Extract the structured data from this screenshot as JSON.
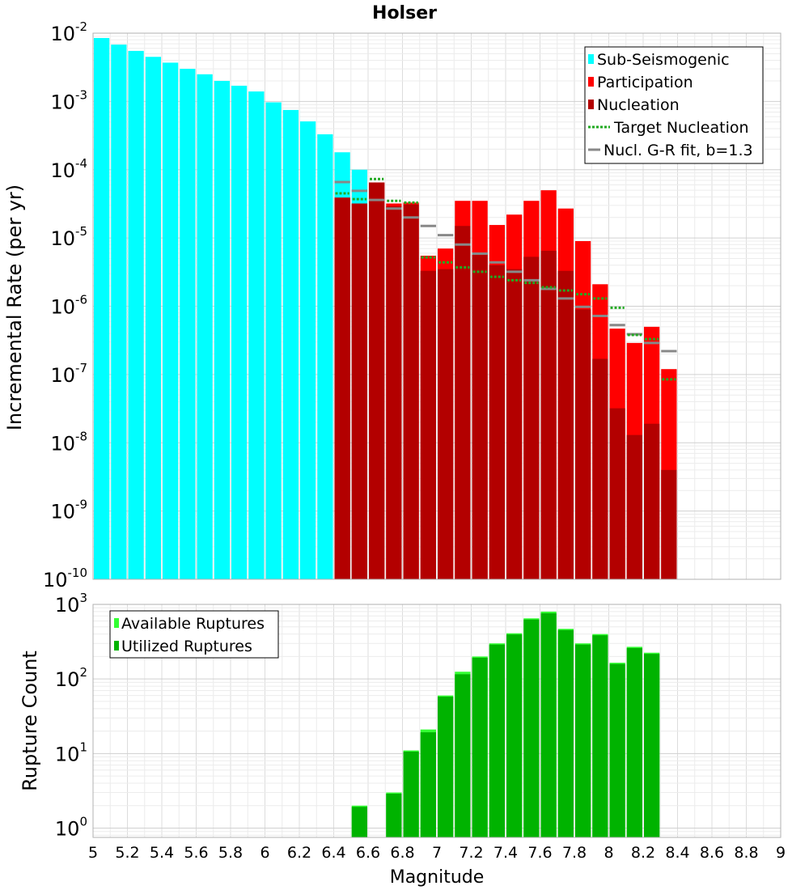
{
  "chart_data": [
    {
      "type": "bar",
      "title": "Holser",
      "xlabel": "",
      "ylabel": "Incremental Rate (per yr)",
      "xlim": [
        5,
        9
      ],
      "ylim": [
        1e-10,
        0.01
      ],
      "yscale": "log",
      "grid": true,
      "legend_position": "top-right",
      "bin_width": 0.1,
      "y_tick_labels": [
        {
          "base": "10",
          "exp": "-10"
        },
        {
          "base": "10",
          "exp": "-9"
        },
        {
          "base": "10",
          "exp": "-8"
        },
        {
          "base": "10",
          "exp": "-7"
        },
        {
          "base": "10",
          "exp": "-6"
        },
        {
          "base": "10",
          "exp": "-5"
        },
        {
          "base": "10",
          "exp": "-4"
        },
        {
          "base": "10",
          "exp": "-3"
        },
        {
          "base": "10",
          "exp": "-2"
        }
      ],
      "legend": [
        "Sub-Seismogenic",
        "Participation",
        "Nucleation",
        "Target Nucleation",
        "Nucl. G-R fit, b=1.3"
      ],
      "series": [
        {
          "name": "Sub-Seismogenic",
          "kind": "bar",
          "color": "#00ffff",
          "x": [
            5.05,
            5.15,
            5.25,
            5.35,
            5.45,
            5.55,
            5.65,
            5.75,
            5.85,
            5.95,
            6.05,
            6.15,
            6.25,
            6.35,
            6.45,
            6.55
          ],
          "values": [
            0.0085,
            0.0068,
            0.0055,
            0.0045,
            0.0037,
            0.003,
            0.0025,
            0.002,
            0.0017,
            0.0014,
            0.00097,
            0.00075,
            0.00051,
            0.00033,
            0.00018,
            0.0001
          ]
        },
        {
          "name": "Participation",
          "kind": "bar",
          "color": "#ff0000",
          "x": [
            6.45,
            6.55,
            6.65,
            6.75,
            6.85,
            6.95,
            7.05,
            7.15,
            7.25,
            7.35,
            7.45,
            7.55,
            7.65,
            7.75,
            7.85,
            7.95,
            8.05,
            8.15,
            8.25,
            8.35
          ],
          "values": [
            3.9e-05,
            3.2e-05,
            6.5e-05,
            3.2e-05,
            3.3e-05,
            5.5e-06,
            7e-06,
            3.5e-05,
            3.5e-05,
            1.55e-05,
            2.2e-05,
            3.5e-05,
            5e-05,
            2.7e-05,
            9e-06,
            2.1e-06,
            4.7e-07,
            2.9e-07,
            5e-07,
            1.2e-07
          ]
        },
        {
          "name": "Nucleation",
          "kind": "bar",
          "color": "#b30000",
          "x": [
            6.45,
            6.55,
            6.65,
            6.75,
            6.85,
            6.95,
            7.05,
            7.15,
            7.25,
            7.35,
            7.45,
            7.55,
            7.65,
            7.75,
            7.85,
            7.95,
            8.05,
            8.15,
            8.25,
            8.35
          ],
          "values": [
            3.9e-05,
            3.2e-05,
            6.5e-05,
            2.9e-05,
            3.1e-05,
            3.3e-06,
            3.5e-06,
            1.5e-05,
            5.8e-06,
            4e-06,
            3.5e-06,
            5.3e-06,
            6.5e-06,
            3.3e-06,
            9e-07,
            1.7e-07,
            3.2e-08,
            1.3e-08,
            1.9e-08,
            4e-09
          ]
        },
        {
          "name": "Target Nucleation",
          "kind": "step-dotted",
          "color": "#22aa22",
          "x": [
            6.45,
            6.55,
            6.65,
            6.75,
            6.85,
            6.95,
            7.05,
            7.15,
            7.25,
            7.35,
            7.45,
            7.55,
            7.65,
            7.75,
            7.85,
            7.95,
            8.05,
            8.15,
            8.25,
            8.35
          ],
          "values": [
            4.5e-05,
            3.7e-05,
            7.3e-05,
            3.5e-05,
            3.3e-05,
            5.2e-06,
            4.4e-06,
            3.7e-06,
            3.2e-06,
            2.7e-06,
            2.4e-06,
            2.2e-06,
            1.9e-06,
            1.7e-06,
            1.5e-06,
            1.3e-06,
            9.5e-07,
            3.8e-07,
            3.3e-07,
            8.5e-08
          ]
        },
        {
          "name": "Nucl. G-R fit, b=1.3",
          "kind": "step",
          "color": "#888888",
          "x": [
            6.45,
            6.55,
            6.65,
            6.75,
            6.85,
            6.95,
            7.05,
            7.15,
            7.25,
            7.35,
            7.45,
            7.55,
            7.65,
            7.75,
            7.85,
            7.95,
            8.05,
            8.15,
            8.25,
            8.35
          ],
          "values": [
            6.6e-05,
            4.9e-05,
            3.6e-05,
            2.7e-05,
            2e-05,
            1.5e-05,
            1.1e-05,
            8e-06,
            5.9e-06,
            4.4e-06,
            3.2e-06,
            2.4e-06,
            1.8e-06,
            1.3e-06,
            9.8e-07,
            7.2e-07,
            5.3e-07,
            3.9e-07,
            2.9e-07,
            2.2e-07
          ]
        }
      ]
    },
    {
      "type": "bar",
      "title": "",
      "xlabel": "Magnitude",
      "ylabel": "Rupture Count",
      "xlim": [
        5,
        9
      ],
      "ylim": [
        0.75,
        1000
      ],
      "yscale": "log",
      "grid": true,
      "legend_position": "top-left",
      "bin_width": 0.1,
      "x_ticks": [
        "5",
        "5.2",
        "5.4",
        "5.6",
        "5.8",
        "6",
        "6.2",
        "6.4",
        "6.6",
        "6.8",
        "7",
        "7.2",
        "7.4",
        "7.6",
        "7.8",
        "8",
        "8.2",
        "8.4",
        "8.6",
        "8.8",
        "9"
      ],
      "y_tick_labels": [
        {
          "base": "10",
          "exp": "0"
        },
        {
          "base": "10",
          "exp": "1"
        },
        {
          "base": "10",
          "exp": "2"
        },
        {
          "base": "10",
          "exp": "3"
        }
      ],
      "legend": [
        "Available Ruptures",
        "Utilized Ruptures"
      ],
      "series": [
        {
          "name": "Available Ruptures",
          "kind": "bar",
          "color": "#33ff33",
          "x": [
            6.55,
            6.75,
            6.85,
            6.95,
            7.05,
            7.15,
            7.25,
            7.35,
            7.45,
            7.55,
            7.65,
            7.75,
            7.85,
            7.95,
            8.05,
            8.15,
            8.25
          ],
          "values": [
            2,
            3,
            11,
            21,
            60,
            125,
            200,
            300,
            410,
            650,
            800,
            470,
            300,
            400,
            165,
            270,
            225
          ]
        },
        {
          "name": "Utilized Ruptures",
          "kind": "bar",
          "color": "#00b300",
          "x": [
            6.55,
            6.75,
            6.85,
            6.95,
            7.05,
            7.15,
            7.25,
            7.35,
            7.45,
            7.55,
            7.65,
            7.75,
            7.85,
            7.95,
            8.05,
            8.15,
            8.25
          ],
          "values": [
            2,
            3,
            11,
            20,
            60,
            120,
            200,
            300,
            410,
            650,
            790,
            470,
            300,
            400,
            165,
            270,
            225
          ]
        }
      ]
    }
  ]
}
